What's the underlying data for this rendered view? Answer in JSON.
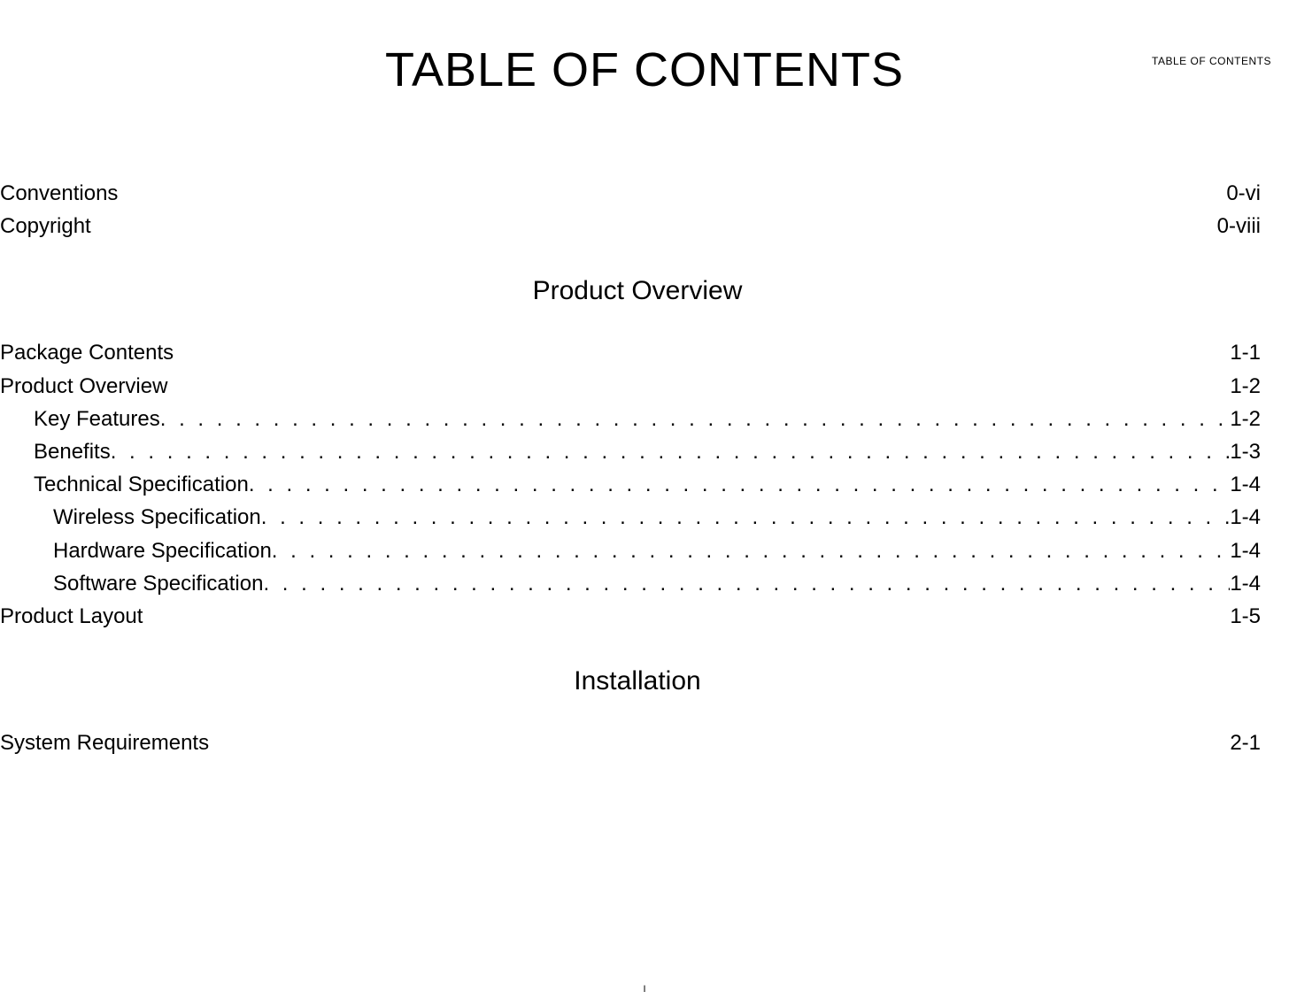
{
  "header_label": "TABLE OF CONTENTS",
  "main_title": "TABLE OF CONTENTS",
  "front_matter": [
    {
      "label": "Conventions",
      "page": "0-vi"
    },
    {
      "label": "Copyright",
      "page": "0-viii"
    }
  ],
  "sections": [
    {
      "heading": "Product Overview",
      "entries": [
        {
          "label": "Package Contents",
          "page": "1-1",
          "dotted": false,
          "indent": 0
        },
        {
          "label": "Product Overview",
          "page": "1-2",
          "dotted": false,
          "indent": 0
        },
        {
          "label": "Key Features ",
          "page": "1-2",
          "dotted": true,
          "indent": 1
        },
        {
          "label": "Benefits",
          "page": "1-3",
          "dotted": true,
          "indent": 1
        },
        {
          "label": "Technical Specification",
          "page": "1-4",
          "dotted": true,
          "indent": 1
        },
        {
          "label": "Wireless Specification",
          "page": "1-4",
          "dotted": true,
          "indent": 2
        },
        {
          "label": "Hardware Specification",
          "page": "1-4",
          "dotted": true,
          "indent": 2
        },
        {
          "label": "Software Specification",
          "page": "1-4",
          "dotted": true,
          "indent": 2
        },
        {
          "label": "Product Layout",
          "page": "1-5",
          "dotted": false,
          "indent": 0
        }
      ]
    },
    {
      "heading": "Installation",
      "entries": [
        {
          "label": "System Requirements",
          "page": "2-1",
          "dotted": false,
          "indent": 0
        }
      ]
    }
  ],
  "footer_page": "I",
  "styles": {
    "background_color": "#ffffff",
    "text_color": "#000000",
    "title_fontsize": 54,
    "body_fontsize": 24,
    "section_heading_fontsize": 30,
    "header_label_fontsize": 12,
    "footer_fontsize": 11,
    "font_family": "Verdana"
  }
}
